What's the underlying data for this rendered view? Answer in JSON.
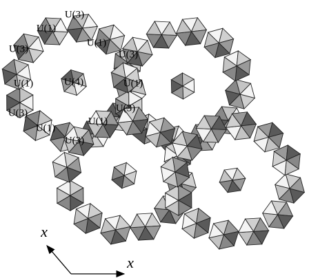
{
  "labels": [
    {
      "text": "U(3)"
    },
    {
      "text": "U(1)"
    },
    {
      "text": "U(3)"
    },
    {
      "text": "U(1)"
    },
    {
      "text": "U(3)"
    },
    {
      "text": "U(1)"
    },
    {
      "text": "U(4)"
    },
    {
      "text": "U(1)"
    },
    {
      "text": "U(3)"
    },
    {
      "text": "U(3)"
    },
    {
      "text": "U(1)"
    },
    {
      "text": "U(1)"
    },
    {
      "text": "U(3)"
    }
  ],
  "axes": [
    "x",
    "x"
  ]
}
